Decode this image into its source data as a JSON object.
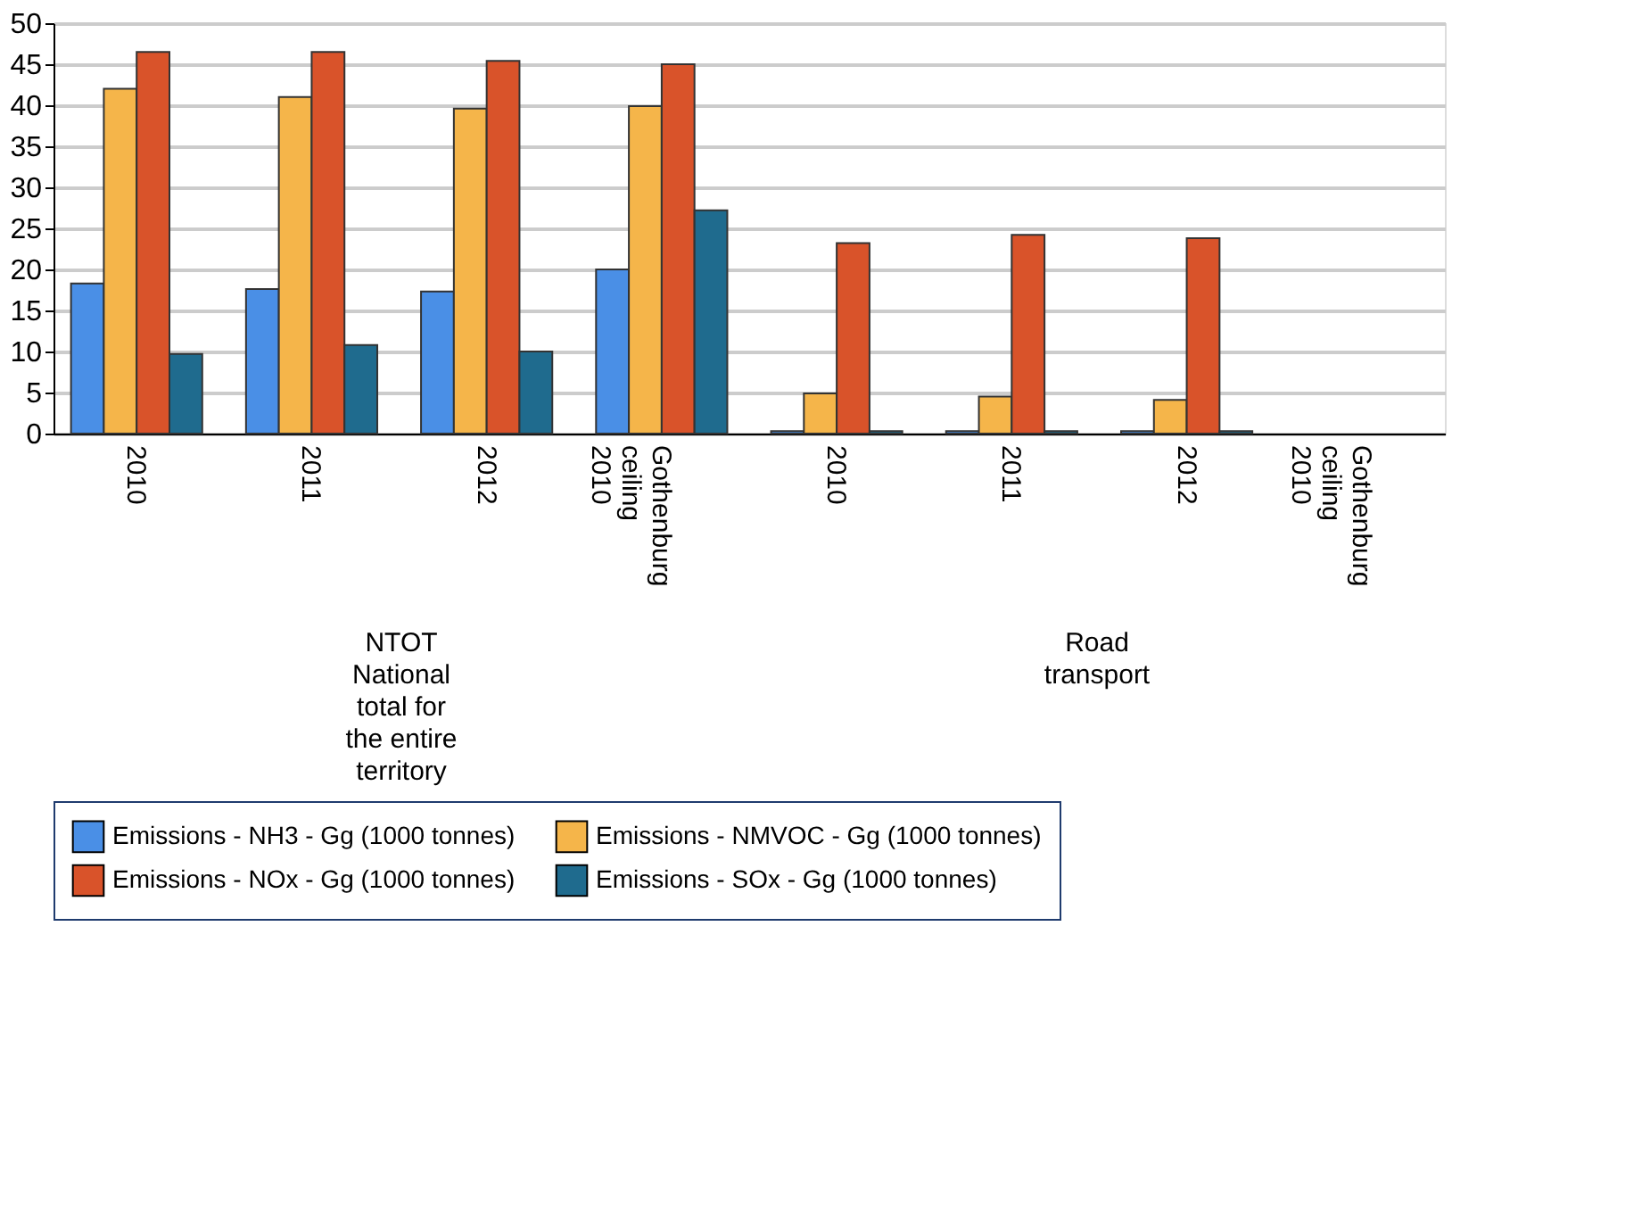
{
  "chart_data": {
    "type": "bar",
    "categories": [
      "2010",
      "2011",
      "2012",
      "Gothenburg ceiling 2010",
      "2010",
      "2011",
      "2012",
      "Gothenburg ceiling 2010"
    ],
    "series": [
      {
        "name": "Emissions - NH3 - Gg (1000 tonnes)",
        "color": "#4a8fe6",
        "values": [
          18.3,
          17.6,
          17.3,
          20.0,
          0.3,
          0.3,
          0.3,
          null
        ]
      },
      {
        "name": "Emissions - NMVOC - Gg (1000 tonnes)",
        "color": "#f5b54a",
        "values": [
          42.0,
          41.0,
          39.6,
          39.9,
          4.9,
          4.5,
          4.1,
          null
        ]
      },
      {
        "name": "Emissions - NOx - Gg (1000 tonnes)",
        "color": "#d9532a",
        "values": [
          46.5,
          46.5,
          45.4,
          45.0,
          23.2,
          24.2,
          23.8,
          null
        ]
      },
      {
        "name": "Emissions - SOx - Gg (1000 tonnes)",
        "color": "#1f6b8e",
        "values": [
          9.7,
          10.8,
          10.0,
          27.2,
          0.3,
          0.3,
          0.3,
          null
        ]
      }
    ],
    "annotations": [
      "NTOT National total for the entire territory",
      "Road transport"
    ],
    "ylim": [
      0,
      50
    ],
    "yticks": [
      0,
      5,
      10,
      15,
      20,
      25,
      30,
      35,
      40,
      45,
      50
    ],
    "grid": "y",
    "legend": "bottom"
  }
}
